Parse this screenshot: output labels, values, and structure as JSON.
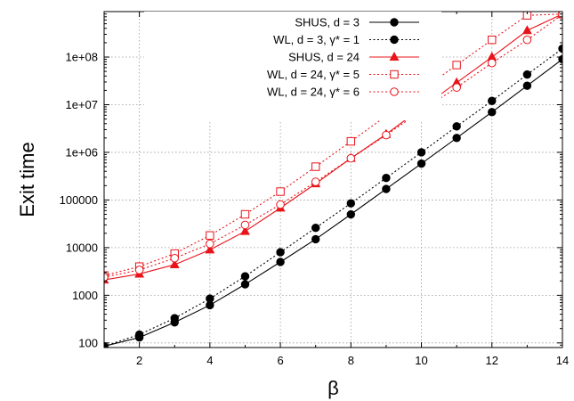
{
  "chart_data": {
    "type": "line",
    "xlabel": "β",
    "ylabel": "Exit time",
    "xlim": [
      1,
      14
    ],
    "ylim": [
      80,
      900000000
    ],
    "yscale": "log",
    "grid": true,
    "legend_placement": "top-right",
    "x_ticks": [
      2,
      4,
      6,
      8,
      10,
      12,
      14
    ],
    "x_tick_labels": [
      "2",
      "4",
      "6",
      "8",
      "10",
      "12",
      "14"
    ],
    "y_ticks": [
      100,
      1000,
      10000,
      100000,
      1000000,
      10000000,
      100000000
    ],
    "y_tick_labels": [
      "100",
      "1000",
      "10000",
      "100000",
      "1e+06",
      "1e+07",
      "1e+08"
    ],
    "series": [
      {
        "name": "SHUS, d = 3",
        "color": "#000000",
        "dash": "solid",
        "marker": "filled-circle",
        "x": [
          1,
          2,
          3,
          4,
          5,
          6,
          7,
          8,
          9,
          10,
          11,
          12,
          13,
          14
        ],
        "y": [
          85,
          130,
          270,
          620,
          1700,
          5000,
          15000,
          50000,
          170000,
          580000,
          2000000,
          7000000,
          25000000,
          90000000
        ]
      },
      {
        "name": "WL, d = 3, γ* = 1",
        "color": "#000000",
        "dash": "dotted",
        "marker": "filled-circle",
        "x": [
          1,
          2,
          3,
          4,
          5,
          6,
          7,
          8,
          9,
          10,
          11,
          12,
          13,
          14
        ],
        "y": [
          85,
          150,
          330,
          850,
          2500,
          8000,
          26000,
          85000,
          290000,
          1000000,
          3500000,
          12000000,
          43000000,
          150000000
        ]
      },
      {
        "name": "SHUS, d = 24",
        "color": "#e8141a",
        "dash": "solid",
        "marker": "filled-triangle",
        "x": [
          1,
          2,
          3,
          4,
          5,
          6,
          7,
          8,
          9,
          10,
          11,
          12,
          13,
          14
        ],
        "y": [
          2100,
          2800,
          4400,
          9000,
          22000,
          68000,
          220000,
          750000,
          2400000,
          8500000,
          29000000,
          100000000,
          360000000,
          800000000
        ]
      },
      {
        "name": "WL, d = 24, γ* = 5",
        "color": "#e8141a",
        "dash": "dotted",
        "marker": "open-square",
        "x": [
          1,
          2,
          3,
          4,
          5,
          6,
          7,
          8,
          9,
          10,
          11,
          12,
          13,
          14
        ],
        "y": [
          2600,
          4000,
          7500,
          18000,
          50000,
          150000,
          500000,
          1700000,
          5800000,
          20000000,
          68000000,
          230000000,
          750000000,
          800000000
        ]
      },
      {
        "name": "WL, d = 24, γ* = 6",
        "color": "#e8141a",
        "dash": "dotted",
        "marker": "open-circle",
        "x": [
          1,
          2,
          3,
          4,
          5,
          6,
          7,
          8,
          9,
          10,
          11,
          12,
          13,
          14
        ],
        "y": [
          2400,
          3400,
          6000,
          12000,
          30000,
          80000,
          240000,
          750000,
          2300000,
          7500000,
          23000000,
          75000000,
          230000000,
          780000000
        ]
      }
    ]
  }
}
